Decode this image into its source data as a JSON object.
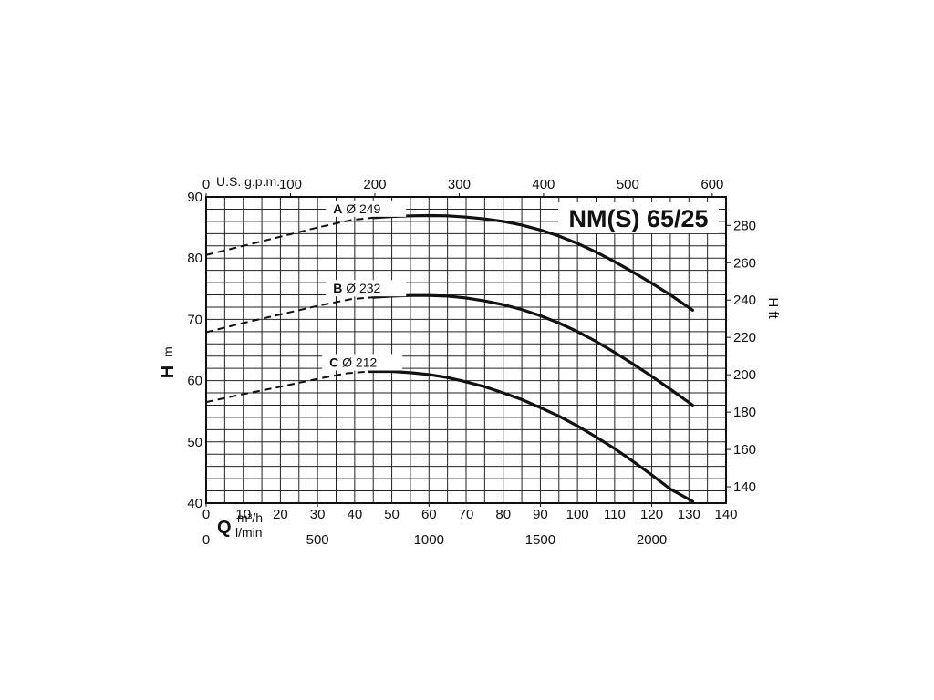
{
  "chart_data": {
    "type": "line",
    "title": "NM(S) 65/25",
    "x_label_symbol": "Q",
    "x_unit_primary": "m³/h",
    "x_unit_secondary": "l/min",
    "x_unit_top": "U.S. g.p.m.",
    "y_label_symbol": "H",
    "y_unit_left": "m",
    "y_label_right": "H ft",
    "xlim": [
      0,
      140
    ],
    "ylim": [
      40,
      90
    ],
    "x_ticks": [
      0,
      10,
      20,
      30,
      40,
      50,
      60,
      70,
      80,
      90,
      100,
      110,
      120,
      130,
      140
    ],
    "y_ticks": [
      40,
      50,
      60,
      70,
      80,
      90
    ],
    "lmin_ticks": [
      0,
      500,
      1000,
      1500,
      2000
    ],
    "gpm_ticks": [
      0,
      100,
      200,
      300,
      400,
      500,
      600
    ],
    "ft_ticks": [
      140,
      160,
      180,
      200,
      220,
      240,
      260,
      280
    ],
    "grid": true,
    "series": [
      {
        "name": "A",
        "diameter_label": "Ø 249",
        "dashed_x": [
          0,
          10,
          20,
          30,
          39,
          45
        ],
        "dashed_y": [
          80.5,
          82.0,
          83.5,
          85.0,
          86.2,
          86.6
        ],
        "solid_x": [
          45,
          50,
          55,
          60,
          65,
          70,
          75,
          80,
          85,
          90,
          95,
          100,
          105,
          110,
          115,
          120,
          125,
          131
        ],
        "solid_y": [
          86.6,
          86.8,
          86.9,
          86.95,
          86.9,
          86.7,
          86.4,
          86.0,
          85.4,
          84.6,
          83.6,
          82.4,
          81.0,
          79.4,
          77.7,
          75.9,
          74.0,
          71.5
        ]
      },
      {
        "name": "B",
        "diameter_label": "Ø 232",
        "dashed_x": [
          0,
          10,
          20,
          30,
          39,
          45
        ],
        "dashed_y": [
          67.9,
          69.4,
          70.8,
          72.2,
          73.3,
          73.6
        ],
        "solid_x": [
          45,
          50,
          55,
          60,
          65,
          70,
          75,
          80,
          85,
          90,
          95,
          100,
          105,
          110,
          115,
          120,
          125,
          131
        ],
        "solid_y": [
          73.6,
          73.8,
          73.9,
          73.9,
          73.8,
          73.5,
          73.0,
          72.4,
          71.6,
          70.6,
          69.4,
          68.0,
          66.4,
          64.6,
          62.7,
          60.7,
          58.6,
          56.0
        ]
      },
      {
        "name": "C",
        "diameter_label": "Ø 212",
        "dashed_x": [
          0,
          10,
          20,
          30,
          38,
          44
        ],
        "dashed_y": [
          56.5,
          57.8,
          59.0,
          60.3,
          61.2,
          61.5
        ],
        "solid_x": [
          44,
          50,
          55,
          60,
          65,
          70,
          75,
          80,
          85,
          90,
          95,
          100,
          105,
          110,
          115,
          120,
          125,
          131
        ],
        "solid_y": [
          61.5,
          61.5,
          61.3,
          61.0,
          60.5,
          59.8,
          59.0,
          58.0,
          56.9,
          55.6,
          54.2,
          52.6,
          50.8,
          48.9,
          46.8,
          44.6,
          42.3,
          40.3
        ]
      }
    ]
  }
}
